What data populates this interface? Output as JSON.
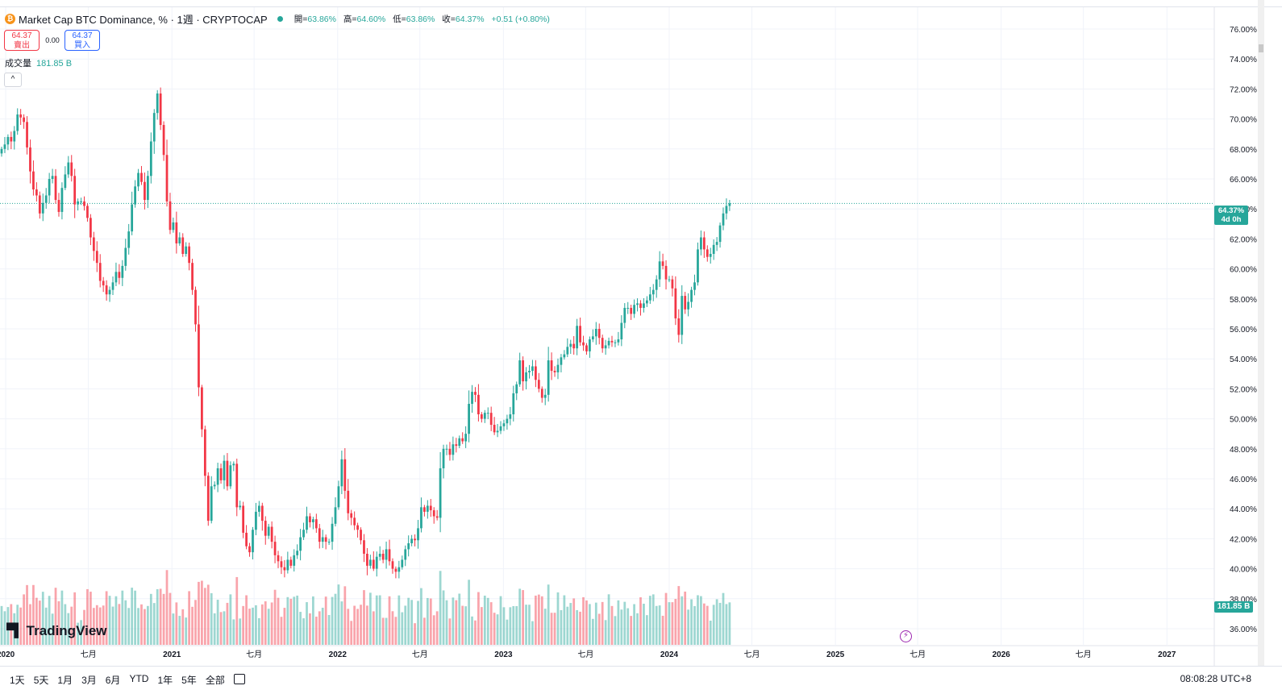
{
  "legend": {
    "coin_icon": "₿",
    "title": "Market Cap BTC Dominance, % · 1週 · CRYPTOCAP",
    "open_label": "開=",
    "open": "63.86%",
    "high_label": "高=",
    "high": "64.60%",
    "low_label": "低=",
    "low": "63.86%",
    "close_label": "收=",
    "close": "64.37%",
    "change": "+0.51 (+0.80%)"
  },
  "trade": {
    "sell_price": "64.37",
    "sell_label": "賣出",
    "spread": "0.00",
    "buy_price": "64.37",
    "buy_label": "買入"
  },
  "volume_legend": {
    "label": "成交量",
    "value": "181.85 B"
  },
  "collapse_icon": "^",
  "watermark": "TradingView",
  "price_label": {
    "value": "64.37%",
    "countdown": "4d 0h"
  },
  "volume_label": "181.85 B",
  "bottom_bar": {
    "ranges": [
      "1天",
      "5天",
      "1月",
      "3月",
      "6月",
      "YTD",
      "1年",
      "5年",
      "全部"
    ],
    "time": "08:08:28 UTC+8"
  },
  "colors": {
    "up": "#26a69a",
    "down": "#f23645",
    "grid": "#f0f3fa"
  },
  "chart_data": {
    "type": "candlestick",
    "symbol": "Market Cap BTC Dominance, %",
    "interval": "1W",
    "y_axis": {
      "unit": "%",
      "ylim": [
        35.5,
        77
      ],
      "tick_labels": [
        "36.00%",
        "38.00%",
        "40.00%",
        "42.00%",
        "44.00%",
        "46.00%",
        "48.00%",
        "50.00%",
        "52.00%",
        "54.00%",
        "56.00%",
        "58.00%",
        "60.00%",
        "62.00%",
        "64.00%",
        "66.00%",
        "68.00%",
        "70.00%",
        "72.00%",
        "74.00%",
        "76.00%"
      ]
    },
    "x_axis": {
      "range": [
        "2019-12-23",
        "2027-04-01"
      ],
      "ticks": [
        {
          "date": "2020-01-01",
          "label": "2020"
        },
        {
          "date": "2020-07-01",
          "label": "七月"
        },
        {
          "date": "2021-01-01",
          "label": "2021"
        },
        {
          "date": "2021-07-01",
          "label": "七月"
        },
        {
          "date": "2022-01-01",
          "label": "2022"
        },
        {
          "date": "2022-07-01",
          "label": "七月"
        },
        {
          "date": "2023-01-01",
          "label": "2023"
        },
        {
          "date": "2023-07-01",
          "label": "七月"
        },
        {
          "date": "2024-01-01",
          "label": "2024"
        },
        {
          "date": "2024-07-01",
          "label": "七月"
        },
        {
          "date": "2025-01-01",
          "label": "2025"
        },
        {
          "date": "2025-07-01",
          "label": "七月"
        },
        {
          "date": "2026-01-01",
          "label": "2026"
        },
        {
          "date": "2026-07-01",
          "label": "七月"
        },
        {
          "date": "2027-01-01",
          "label": "2027"
        }
      ]
    },
    "current_price": 64.37,
    "last_bar": {
      "open": 63.86,
      "high": 64.6,
      "low": 63.86,
      "close": 64.37,
      "volume_b": 181.85
    },
    "series": [
      {
        "name": "BTC Dominance",
        "start_date": "2019-12-23",
        "step_days": 7,
        "closes": [
          68.0,
          68.3,
          68.8,
          68.5,
          69.2,
          70.3,
          70.1,
          69.8,
          68.1,
          66.5,
          65.3,
          64.9,
          63.7,
          64.4,
          64.9,
          66.0,
          66.2,
          64.6,
          63.8,
          65.4,
          66.3,
          67.1,
          66.2,
          64.3,
          64.5,
          64.5,
          64.2,
          63.4,
          62.1,
          61.2,
          60.4,
          59.2,
          58.9,
          58.3,
          58.6,
          59.1,
          59.8,
          59.4,
          60.2,
          61.4,
          62.5,
          64.3,
          65.5,
          66.4,
          65.8,
          64.6,
          66.2,
          68.5,
          70.4,
          71.7,
          69.6,
          67.6,
          64.5,
          62.6,
          63.1,
          61.7,
          62.1,
          61.0,
          61.5,
          60.4,
          58.6,
          56.3,
          52.1,
          49.3,
          46.2,
          43.2,
          45.5,
          45.6,
          46.7,
          45.9,
          47.2,
          45.5,
          46.9,
          47.0,
          44.1,
          44.2,
          42.4,
          41.5,
          41.1,
          42.6,
          43.8,
          44.2,
          43.2,
          42.2,
          42.8,
          41.8,
          40.9,
          40.5,
          40.1,
          39.9,
          40.6,
          40.2,
          40.9,
          41.2,
          42.1,
          42.6,
          43.5,
          43.1,
          43.3,
          42.7,
          41.8,
          42.1,
          41.8,
          41.8,
          43.0,
          44.1,
          45.5,
          47.3,
          45.2,
          43.7,
          43.4,
          42.9,
          42.6,
          41.9,
          41.0,
          40.2,
          40.6,
          40.0,
          40.8,
          41.0,
          40.6,
          41.3,
          40.5,
          40.0,
          39.8,
          40.1,
          40.6,
          41.3,
          41.7,
          42.0,
          41.9,
          42.7,
          44.1,
          43.8,
          44.2,
          43.9,
          43.5,
          43.4,
          46.7,
          48.0,
          48.0,
          47.6,
          48.3,
          48.2,
          48.7,
          48.5,
          49.0,
          51.0,
          51.8,
          51.6,
          50.3,
          50.0,
          50.4,
          50.4,
          49.6,
          49.1,
          49.2,
          49.5,
          49.7,
          50.0,
          50.3,
          51.7,
          52.3,
          53.9,
          52.5,
          53.1,
          53.2,
          53.5,
          52.6,
          52.0,
          51.4,
          51.6,
          53.9,
          53.2,
          53.1,
          53.6,
          54.1,
          54.3,
          54.8,
          55.0,
          54.7,
          56.2,
          55.1,
          54.9,
          54.5,
          55.3,
          55.5,
          56.0,
          55.4,
          54.7,
          54.9,
          55.2,
          55.1,
          55.1,
          55.3,
          56.4,
          57.4,
          57.4,
          57.0,
          57.6,
          57.7,
          57.4,
          57.7,
          57.9,
          58.3,
          58.6,
          59.3,
          60.5,
          60.2,
          59.3,
          59.3,
          58.7,
          56.7,
          55.6,
          58.2,
          57.3,
          57.8,
          58.6,
          59.1,
          61.3,
          62.1,
          61.3,
          60.8,
          61.0,
          61.6,
          61.8,
          62.9,
          63.7,
          64.2,
          64.37
        ]
      }
    ]
  }
}
